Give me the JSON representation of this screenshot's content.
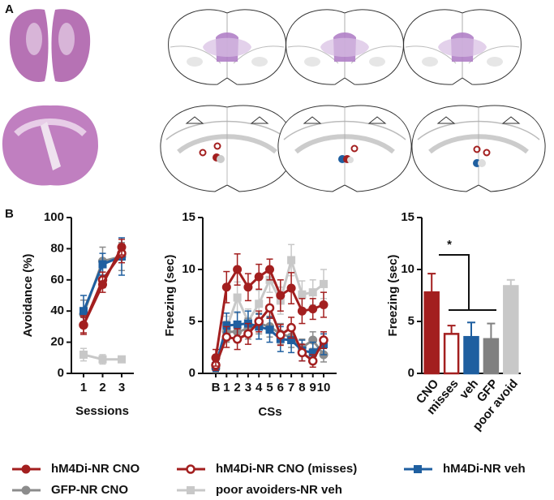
{
  "panel_labels": [
    "A",
    "B"
  ],
  "chart_data": [
    {
      "type": "line",
      "ylabel": "Avoidance (%)",
      "xlabel": "Sessions",
      "categories": [
        "1",
        "2",
        "3"
      ],
      "ylim": [
        0,
        100
      ],
      "yticks": [
        0,
        20,
        40,
        60,
        80,
        100
      ],
      "series": [
        {
          "name": "hM4Di-NR CNO",
          "color": "#a31f1f",
          "marker": "circle",
          "values": [
            31,
            57,
            81
          ],
          "errors": [
            5,
            5,
            5
          ]
        },
        {
          "name": "hM4Di-NR CNO (misses)",
          "color": "#a31f1f",
          "marker": "open-circle",
          "values": [
            31,
            60,
            77
          ],
          "errors": [
            6,
            5,
            6
          ]
        },
        {
          "name": "hM4Di-NR veh",
          "color": "#1f5fa0",
          "marker": "square",
          "values": [
            40,
            70,
            75
          ],
          "errors": [
            10,
            7,
            12
          ]
        },
        {
          "name": "GFP-NR CNO",
          "color": "#8c8c8c",
          "marker": "circle",
          "values": [
            38,
            72,
            75
          ],
          "errors": [
            9,
            9,
            9
          ]
        },
        {
          "name": "poor avoiders-NR veh",
          "color": "#c8c8c8",
          "marker": "square",
          "values": [
            12,
            9,
            9
          ],
          "errors": [
            4,
            3,
            2
          ]
        }
      ]
    },
    {
      "type": "line",
      "ylabel": "Freezing (sec)",
      "xlabel": "CSs",
      "categories": [
        "B",
        "1",
        "2",
        "3",
        "4",
        "5",
        "6",
        "7",
        "8",
        "9",
        "10"
      ],
      "ylim": [
        0,
        15
      ],
      "yticks": [
        0,
        5,
        10,
        15
      ],
      "series": [
        {
          "name": "hM4Di-NR CNO",
          "color": "#a31f1f",
          "marker": "circle",
          "values": [
            1.5,
            8.3,
            10,
            8.3,
            9.3,
            10,
            7.5,
            8.2,
            6,
            6.2,
            6.6
          ],
          "errors": [
            0.8,
            1.5,
            1.5,
            1.3,
            1.2,
            1,
            1.5,
            1.5,
            1.2,
            1,
            1.2
          ]
        },
        {
          "name": "hM4Di-NR CNO (misses)",
          "color": "#a31f1f",
          "marker": "open-circle",
          "values": [
            0.8,
            3.5,
            3.3,
            3.8,
            5,
            6.3,
            3.7,
            4.4,
            2,
            1.2,
            3.2
          ],
          "errors": [
            0.5,
            1,
            1,
            1,
            1,
            1,
            1,
            1,
            0.8,
            0.6,
            0.8
          ]
        },
        {
          "name": "hM4Di-NR veh",
          "color": "#1f5fa0",
          "marker": "square",
          "values": [
            0.7,
            4.6,
            4.7,
            4.8,
            4.5,
            4.2,
            3.3,
            3.2,
            2.2,
            2.0,
            2.8
          ],
          "errors": [
            0.5,
            1.2,
            1.2,
            1.2,
            1.2,
            1.2,
            1.2,
            1.2,
            1,
            1,
            1
          ]
        },
        {
          "name": "GFP-NR CNO",
          "color": "#8c8c8c",
          "marker": "circle",
          "values": [
            0.5,
            4,
            4,
            4.3,
            4.8,
            4.5,
            3.8,
            3.5,
            2.5,
            3.2,
            1.8
          ],
          "errors": [
            0.4,
            1,
            1,
            1,
            1,
            1,
            1,
            1,
            0.8,
            0.8,
            0.7
          ]
        },
        {
          "name": "poor avoiders-NR veh",
          "color": "#c8c8c8",
          "marker": "square",
          "values": [
            0.6,
            4.3,
            7.3,
            5,
            6.7,
            9,
            7,
            10.9,
            7.6,
            7.8,
            8.6
          ],
          "errors": [
            0.4,
            1.2,
            1.5,
            1.2,
            1.3,
            1.2,
            1.3,
            1.5,
            1.3,
            1.2,
            1.4
          ]
        }
      ]
    },
    {
      "type": "bar",
      "ylabel": "Freezing (sec)",
      "annotation": "*",
      "categories": [
        "CNO",
        "misses",
        "veh",
        "GFP",
        "poor avoid"
      ],
      "ylim": [
        0,
        15
      ],
      "yticks": [
        0,
        5,
        10,
        15
      ],
      "values": [
        7.8,
        3.8,
        3.5,
        3.3,
        8.4
      ],
      "errors": [
        1.8,
        0.8,
        1.4,
        1.5,
        0.6
      ],
      "colors": [
        "#a31f1f",
        "#ffffff",
        "#1f5fa0",
        "#808080",
        "#c8c8c8"
      ],
      "edgecolors": [
        "#a31f1f",
        "#a31f1f",
        "#1f5fa0",
        "#808080",
        "#c8c8c8"
      ]
    }
  ]
}
